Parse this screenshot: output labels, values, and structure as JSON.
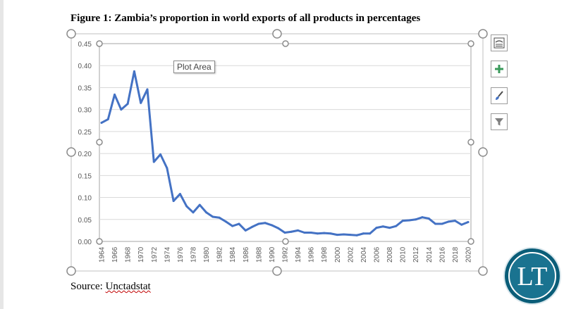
{
  "figure": {
    "title": "Figure 1: Zambia’s proportion in world exports of all products in percentages",
    "source_prefix": "Source: ",
    "source_name": "Unctadstat"
  },
  "tooltip": "Plot Area",
  "toolbar": {
    "icons": [
      "chart-layout-icon",
      "chart-elements-plus-icon",
      "chart-styles-brush-icon",
      "chart-filter-icon"
    ]
  },
  "logo": {
    "text": "LT",
    "colors": {
      "outer": "#0a5d78",
      "inner": "#1a7390",
      "text": "#ffffff"
    }
  },
  "colors": {
    "line": "#4472c4",
    "grid": "#d9d9d9",
    "axis_text": "#595959",
    "handle": "#8c8c8c"
  },
  "chart_data": {
    "type": "line",
    "title": "",
    "xlabel": "",
    "ylabel": "",
    "ylim": [
      0,
      0.45
    ],
    "y_ticks": [
      "0.00",
      "0.05",
      "0.10",
      "0.15",
      "0.20",
      "0.25",
      "0.30",
      "0.35",
      "0.40",
      "0.45"
    ],
    "x_tick_labels": [
      "1964",
      "1966",
      "1968",
      "1970",
      "1972",
      "1974",
      "1976",
      "1978",
      "1980",
      "1982",
      "1984",
      "1986",
      "1988",
      "1990",
      "1992",
      "1994",
      "1996",
      "1998",
      "2000",
      "2002",
      "2004",
      "2006",
      "2008",
      "2010",
      "2012",
      "2014",
      "2016",
      "2018",
      "2020"
    ],
    "grid": "horizontal",
    "legend": "none",
    "series": [
      {
        "x": [
          1964,
          1965,
          1966,
          1967,
          1968,
          1969,
          1970,
          1971,
          1972,
          1973,
          1974,
          1975,
          1976,
          1977,
          1978,
          1979,
          1980,
          1981,
          1982,
          1983,
          1984,
          1985,
          1986,
          1987,
          1988,
          1989,
          1990,
          1991,
          1992,
          1993,
          1994,
          1995,
          1996,
          1997,
          1998,
          1999,
          2000,
          2001,
          2002,
          2003,
          2004,
          2005,
          2006,
          2007,
          2008,
          2009,
          2010,
          2011,
          2012,
          2013,
          2014,
          2015,
          2016,
          2017,
          2018,
          2019,
          2020
        ],
        "values": [
          0.27,
          0.278,
          0.334,
          0.3,
          0.313,
          0.387,
          0.315,
          0.346,
          0.181,
          0.198,
          0.167,
          0.092,
          0.108,
          0.08,
          0.066,
          0.083,
          0.066,
          0.056,
          0.054,
          0.045,
          0.035,
          0.04,
          0.025,
          0.033,
          0.04,
          0.042,
          0.037,
          0.03,
          0.02,
          0.022,
          0.025,
          0.02,
          0.02,
          0.018,
          0.019,
          0.018,
          0.015,
          0.016,
          0.015,
          0.014,
          0.018,
          0.018,
          0.031,
          0.034,
          0.031,
          0.035,
          0.047,
          0.048,
          0.05,
          0.055,
          0.052,
          0.04,
          0.04,
          0.045,
          0.047,
          0.038,
          0.044
        ]
      }
    ]
  }
}
